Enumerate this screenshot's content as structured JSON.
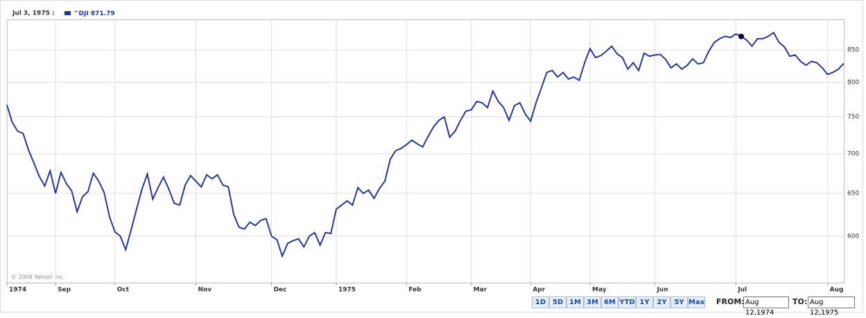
{
  "chart_data": {
    "type": "line",
    "hover_label": "Jul 3, 1975 :",
    "hover_value": 871.79,
    "copyright": "© 2008 Yahoo! Inc.",
    "categories": [
      "1974",
      null,
      null,
      null,
      null,
      null,
      null,
      null,
      null,
      "Sep",
      null,
      null,
      null,
      null,
      null,
      null,
      null,
      null,
      null,
      null,
      "Oct",
      null,
      null,
      null,
      null,
      null,
      null,
      null,
      null,
      null,
      null,
      null,
      null,
      null,
      null,
      "Nov",
      null,
      null,
      null,
      null,
      null,
      null,
      null,
      null,
      null,
      null,
      null,
      null,
      null,
      "Dec",
      null,
      null,
      null,
      null,
      null,
      null,
      null,
      null,
      null,
      null,
      null,
      "1975",
      null,
      null,
      null,
      null,
      null,
      null,
      null,
      null,
      null,
      null,
      null,
      null,
      "Feb",
      null,
      null,
      null,
      null,
      null,
      null,
      null,
      null,
      null,
      null,
      null,
      "Mar",
      null,
      null,
      null,
      null,
      null,
      null,
      null,
      null,
      null,
      null,
      "Apr",
      null,
      null,
      null,
      null,
      null,
      null,
      null,
      null,
      null,
      null,
      "May",
      null,
      null,
      null,
      null,
      null,
      null,
      null,
      null,
      null,
      null,
      null,
      "Jun",
      null,
      null,
      null,
      null,
      null,
      null,
      null,
      null,
      null,
      null,
      null,
      null,
      null,
      null,
      "Jul",
      null,
      null,
      null,
      null,
      null,
      null,
      null,
      null,
      null,
      null,
      null,
      null,
      null,
      null,
      null,
      null,
      "Aug",
      null,
      null,
      null
    ],
    "series": [
      {
        "name": "^DJI",
        "color": "#26368f",
        "values": [
          767,
          742,
          730,
          727,
          705,
          688,
          671,
          659,
          678,
          650,
          676,
          662,
          653,
          628,
          646,
          652,
          675,
          665,
          651,
          622,
          605,
          600,
          585,
          607,
          631,
          655,
          674,
          643,
          657,
          670,
          655,
          638,
          636,
          660,
          672,
          665,
          658,
          673,
          668,
          673,
          660,
          658,
          625,
          610,
          608,
          616,
          612,
          618,
          620,
          600,
          596,
          578,
          592,
          595,
          597,
          588,
          600,
          604,
          590,
          604,
          603,
          631,
          636,
          641,
          636,
          657,
          650,
          654,
          644,
          656,
          665,
          693,
          704,
          707,
          712,
          718,
          713,
          709,
          723,
          736,
          745,
          750,
          722,
          730,
          745,
          758,
          760,
          772,
          770,
          763,
          787,
          772,
          763,
          745,
          766,
          770,
          754,
          744,
          770,
          792,
          815,
          818,
          808,
          815,
          805,
          808,
          803,
          830,
          852,
          838,
          841,
          848,
          856,
          844,
          838,
          820,
          830,
          818,
          845,
          840,
          842,
          843,
          835,
          822,
          828,
          820,
          826,
          836,
          828,
          830,
          848,
          862,
          868,
          872,
          870,
          876,
          871.79,
          866,
          856,
          868,
          868,
          872,
          878,
          862,
          855,
          840,
          842,
          832,
          826,
          832,
          830,
          822,
          812,
          815,
          820,
          829
        ]
      }
    ],
    "ylim": [
      550,
      900
    ],
    "yticks": [
      600,
      650,
      700,
      750,
      800,
      850
    ],
    "log_scale": true,
    "grid": true
  },
  "controls": {
    "ranges": [
      "1D",
      "5D",
      "1M",
      "3M",
      "6M",
      "YTD",
      "1Y",
      "2Y",
      "5Y",
      "Max"
    ],
    "from_label": "FROM:",
    "from_value": "Aug 12,1974",
    "to_label": "TO:",
    "to_value": "Aug 12,1975"
  }
}
